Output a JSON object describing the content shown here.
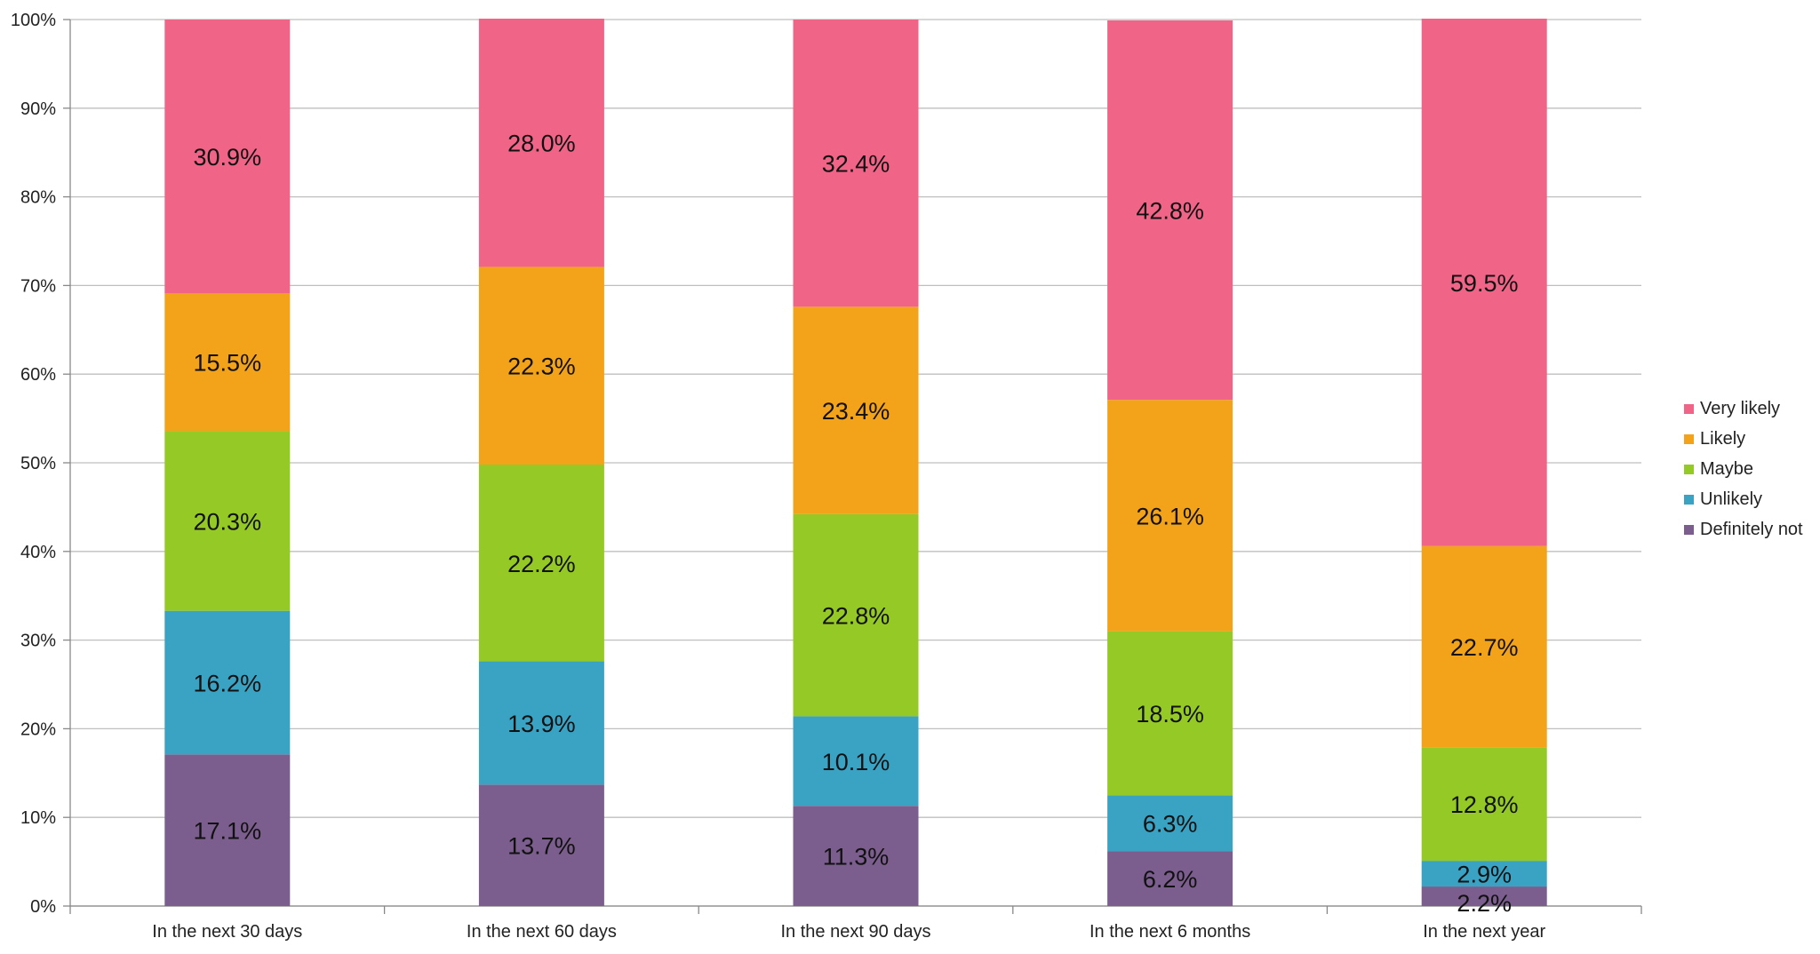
{
  "chart_data": {
    "type": "bar",
    "stacked": true,
    "percent_stacked": true,
    "categories": [
      "In the next 30 days",
      "In the next 60 days",
      "In the next 90 days",
      "In the next 6 months",
      "In the next year"
    ],
    "series": [
      {
        "name": "Definitely not",
        "color": "#7B5E8E",
        "values": [
          17.1,
          13.7,
          11.3,
          6.2,
          2.2
        ],
        "labels": [
          "17.1%",
          "13.7%",
          "11.3%",
          "6.2%",
          "2.2%"
        ]
      },
      {
        "name": "Unlikely",
        "color": "#3AA3C3",
        "values": [
          16.2,
          13.9,
          10.1,
          6.3,
          2.9
        ],
        "labels": [
          "16.2%",
          "13.9%",
          "10.1%",
          "6.3%",
          "2.9%"
        ]
      },
      {
        "name": "Maybe",
        "color": "#95C926",
        "values": [
          20.3,
          22.2,
          22.8,
          18.5,
          12.8
        ],
        "labels": [
          "20.3%",
          "22.2%",
          "22.8%",
          "18.5%",
          "12.8%"
        ]
      },
      {
        "name": "Likely",
        "color": "#F3A31A",
        "values": [
          15.5,
          22.3,
          23.4,
          26.1,
          22.7
        ],
        "labels": [
          "15.5%",
          "22.3%",
          "23.4%",
          "26.1%",
          "22.7%"
        ]
      },
      {
        "name": "Very likely",
        "color": "#F06587",
        "values": [
          30.9,
          28.0,
          32.4,
          42.8,
          59.5
        ],
        "labels": [
          "30.9%",
          "28.0%",
          "32.4%",
          "42.8%",
          "59.5%"
        ]
      }
    ],
    "yticks": [
      "0%",
      "10%",
      "20%",
      "30%",
      "40%",
      "50%",
      "60%",
      "70%",
      "80%",
      "90%",
      "100%"
    ],
    "ylim": [
      0,
      100
    ],
    "legend_order": [
      "Very likely",
      "Likely",
      "Maybe",
      "Unlikely",
      "Definitely not"
    ],
    "legend_position": "right",
    "grid": true
  }
}
